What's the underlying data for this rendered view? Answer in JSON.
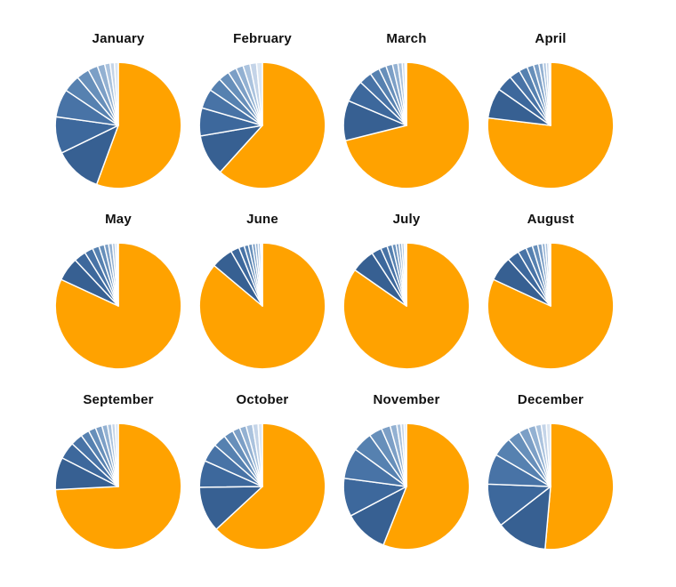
{
  "chart_data": {
    "type": "pie",
    "title": "",
    "layout": {
      "grid_rows": 3,
      "grid_cols": 4,
      "legend": "none",
      "slice_start": "top",
      "direction": "clockwise",
      "axes": "none",
      "background": "#ffffff"
    },
    "palette": {
      "majority_color": "#FFA200",
      "blue_shades": [
        "#376092",
        "#3D689C",
        "#4873A6",
        "#5681B0",
        "#678FBA",
        "#7C9FC6",
        "#93B1D2",
        "#ABC3DE",
        "#C4D4E8",
        "#DCE6F1"
      ],
      "separator_color": "#FFFFFF",
      "title_color": "#111111"
    },
    "unit": "percent",
    "series_note": "Each pie: first value is the large orange slice, remaining values are blue slices shaded dark to light going clockwise back to 12 o'clock",
    "months": [
      {
        "label": "January",
        "values": [
          55.6,
          12.2,
          9.4,
          7.2,
          4.4,
          3.3,
          2.5,
          1.9,
          1.4,
          1.1,
          1.0
        ]
      },
      {
        "label": "February",
        "values": [
          61.7,
          10.6,
          7.2,
          5.0,
          3.6,
          2.8,
          2.2,
          1.9,
          1.8,
          1.7,
          1.5
        ]
      },
      {
        "label": "March",
        "values": [
          71.1,
          10.3,
          5.6,
          3.3,
          2.5,
          1.9,
          1.7,
          1.4,
          1.1,
          0.7,
          0.4
        ]
      },
      {
        "label": "April",
        "values": [
          76.9,
          7.8,
          4.2,
          2.8,
          2.2,
          1.7,
          1.4,
          1.1,
          0.8,
          0.7,
          0.4
        ]
      },
      {
        "label": "May",
        "values": [
          81.9,
          6.1,
          3.1,
          2.2,
          1.7,
          1.4,
          1.1,
          1.0,
          0.7,
          0.5,
          0.3
        ]
      },
      {
        "label": "June",
        "values": [
          86.1,
          5.6,
          2.2,
          1.4,
          1.1,
          1.0,
          0.8,
          0.7,
          0.6,
          0.4,
          0.1
        ]
      },
      {
        "label": "July",
        "values": [
          84.7,
          6.1,
          2.5,
          1.7,
          1.3,
          1.0,
          0.8,
          0.7,
          0.6,
          0.4,
          0.2
        ]
      },
      {
        "label": "August",
        "values": [
          81.9,
          6.4,
          3.1,
          2.2,
          1.7,
          1.4,
          1.1,
          0.8,
          0.7,
          0.4,
          0.3
        ]
      },
      {
        "label": "September",
        "values": [
          74.2,
          8.3,
          4.4,
          3.1,
          2.2,
          1.9,
          1.7,
          1.4,
          1.1,
          0.9,
          0.8
        ]
      },
      {
        "label": "October",
        "values": [
          63.1,
          11.7,
          6.9,
          4.7,
          3.3,
          2.5,
          1.9,
          1.7,
          1.7,
          1.4,
          1.1
        ]
      },
      {
        "label": "November",
        "values": [
          56.0,
          11.3,
          9.8,
          7.9,
          5.1,
          3.4,
          2.3,
          1.7,
          1.1,
          0.8,
          0.6
        ]
      },
      {
        "label": "December",
        "values": [
          51.4,
          13.1,
          11.1,
          7.8,
          5.0,
          3.3,
          2.5,
          1.9,
          1.5,
          1.3,
          1.1
        ]
      }
    ]
  }
}
